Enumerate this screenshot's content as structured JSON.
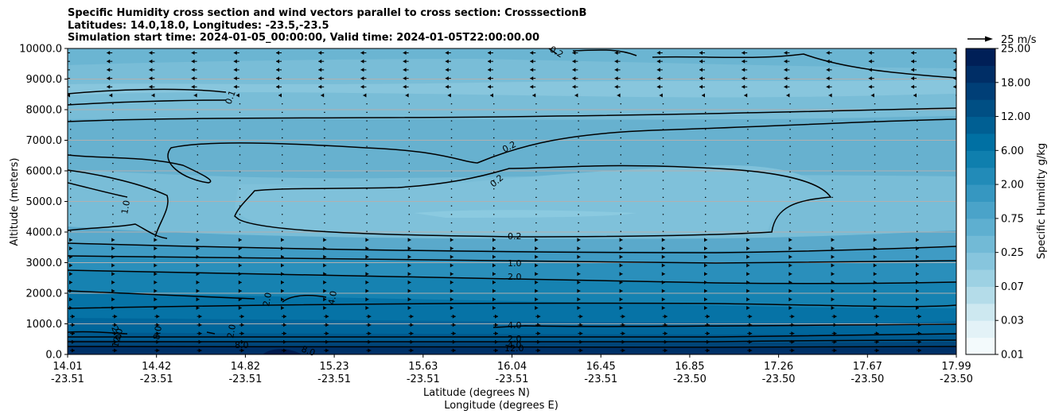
{
  "chart_data": {
    "type": "contour",
    "title_lines": [
      "Specific Humidity cross section and wind vectors parallel to cross section: CrosssectionB",
      "Latitudes: 14.0,18.0, Longitudes: -23.5,-23.5",
      "Simulation start time: 2024-01-05_00:00:00, Valid time: 2024-01-05T22:00:00.00"
    ],
    "ylabel": "Altitude (meters)",
    "xlabel_lat": "Latitude (degrees N)",
    "xlabel_lon": "Longitude (degrees E)",
    "ylim": [
      0,
      10000
    ],
    "y_ticks": [
      "0.0",
      "1000.0",
      "2000.0",
      "3000.0",
      "4000.0",
      "5000.0",
      "6000.0",
      "7000.0",
      "8000.0",
      "9000.0",
      "10000.0"
    ],
    "x_ticks_lat": [
      "14.01",
      "14.42",
      "14.82",
      "15.23",
      "15.63",
      "16.04",
      "16.45",
      "16.85",
      "17.26",
      "17.67",
      "17.99"
    ],
    "x_ticks_lon": [
      "-23.51",
      "-23.51",
      "-23.51",
      "-23.51",
      "-23.51",
      "-23.51",
      "-23.51",
      "-23.50",
      "-23.50",
      "-23.50",
      "-23.50"
    ],
    "colorbar_label": "Specific Humidity g/kg",
    "colorbar_ticks": [
      "0.01",
      "0.03",
      "0.07",
      "0.25",
      "0.75",
      "2.00",
      "6.00",
      "12.00",
      "18.00",
      "25.00"
    ],
    "quiver_key_label": "25 m/s",
    "contour_labels": [
      "0.1",
      "0.2",
      "0.2",
      "0.2",
      "0.2",
      "1.0",
      "1.0",
      "2.0",
      "2.0",
      "4.0",
      "4.0",
      "2.0",
      "4.0",
      "8.0",
      "12.0",
      "2.0",
      "8.0",
      "2.0",
      "8.0",
      "12.0"
    ]
  },
  "colors": {
    "levels": [
      "#f3fafc",
      "#e3f2f7",
      "#cde8f0",
      "#b4dce9",
      "#9dd1e3",
      "#87c5dd",
      "#72bad6",
      "#5eafd0",
      "#4aa3c9",
      "#3697c1",
      "#228bb8",
      "#0f7fae",
      "#0070a3",
      "#005f93",
      "#004f84",
      "#003f77",
      "#002e66",
      "#001f57"
    ]
  }
}
